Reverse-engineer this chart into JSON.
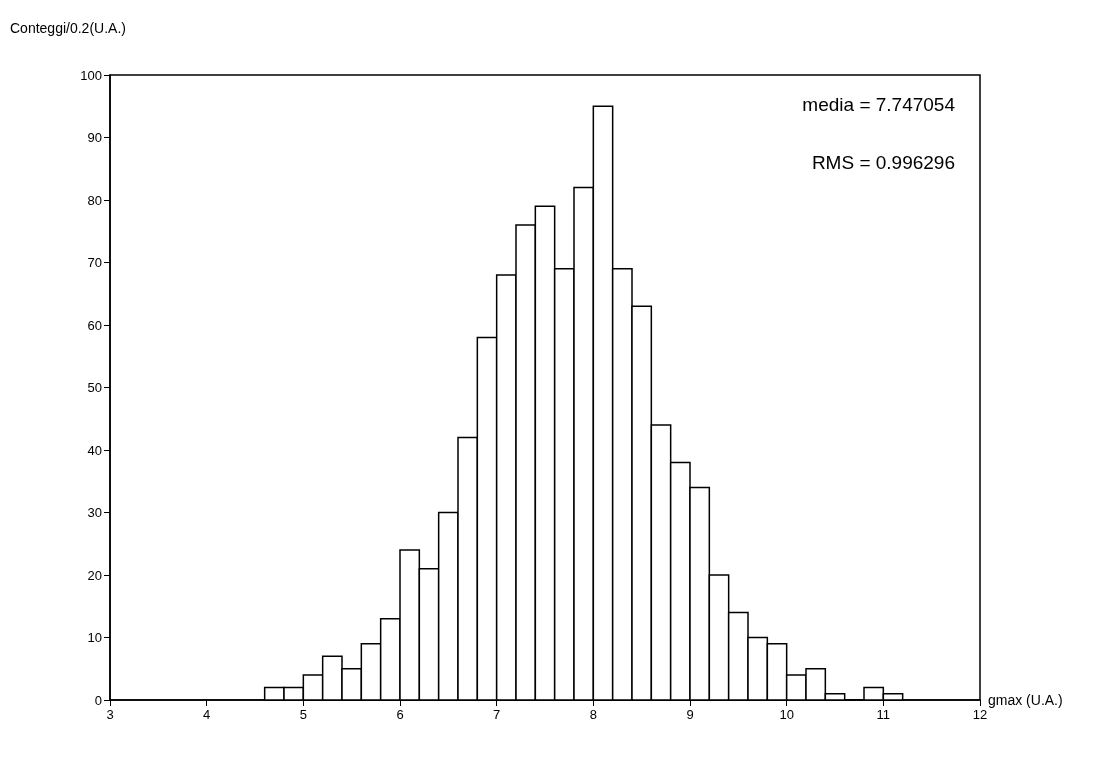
{
  "chart_data": {
    "type": "histogram",
    "xlabel": "gmax (U.A.)",
    "ylabel": "Conteggi/0.2(U.A.)",
    "annotations": [
      "media = 7.747054",
      "RMS = 0.996296"
    ],
    "bins": [
      4.6,
      4.8,
      5.0,
      5.2,
      5.4,
      5.6,
      5.8,
      6.0,
      6.2,
      6.4,
      6.6,
      6.8,
      7.0,
      7.2,
      7.4,
      7.6,
      7.8,
      8.0,
      8.2,
      8.4,
      8.6,
      8.8,
      9.0,
      9.2,
      9.4,
      9.6,
      9.8,
      10.0,
      10.2,
      10.4,
      10.6,
      10.8,
      11.0,
      11.2
    ],
    "values": [
      2,
      2,
      4,
      7,
      5,
      9,
      13,
      24,
      21,
      30,
      42,
      58,
      68,
      76,
      79,
      69,
      82,
      95,
      69,
      63,
      44,
      38,
      34,
      20,
      14,
      10,
      9,
      4,
      5,
      1,
      0,
      2,
      1
    ],
    "color": "#ffffff",
    "xlim": [
      3,
      12
    ],
    "xticks": [
      3,
      4,
      5,
      6,
      7,
      8,
      9,
      10,
      11,
      12
    ],
    "ylim": [
      0,
      100
    ],
    "yticks": [
      0,
      10,
      20,
      30,
      40,
      50,
      60,
      70,
      80,
      90,
      100
    ],
    "grid": false
  }
}
